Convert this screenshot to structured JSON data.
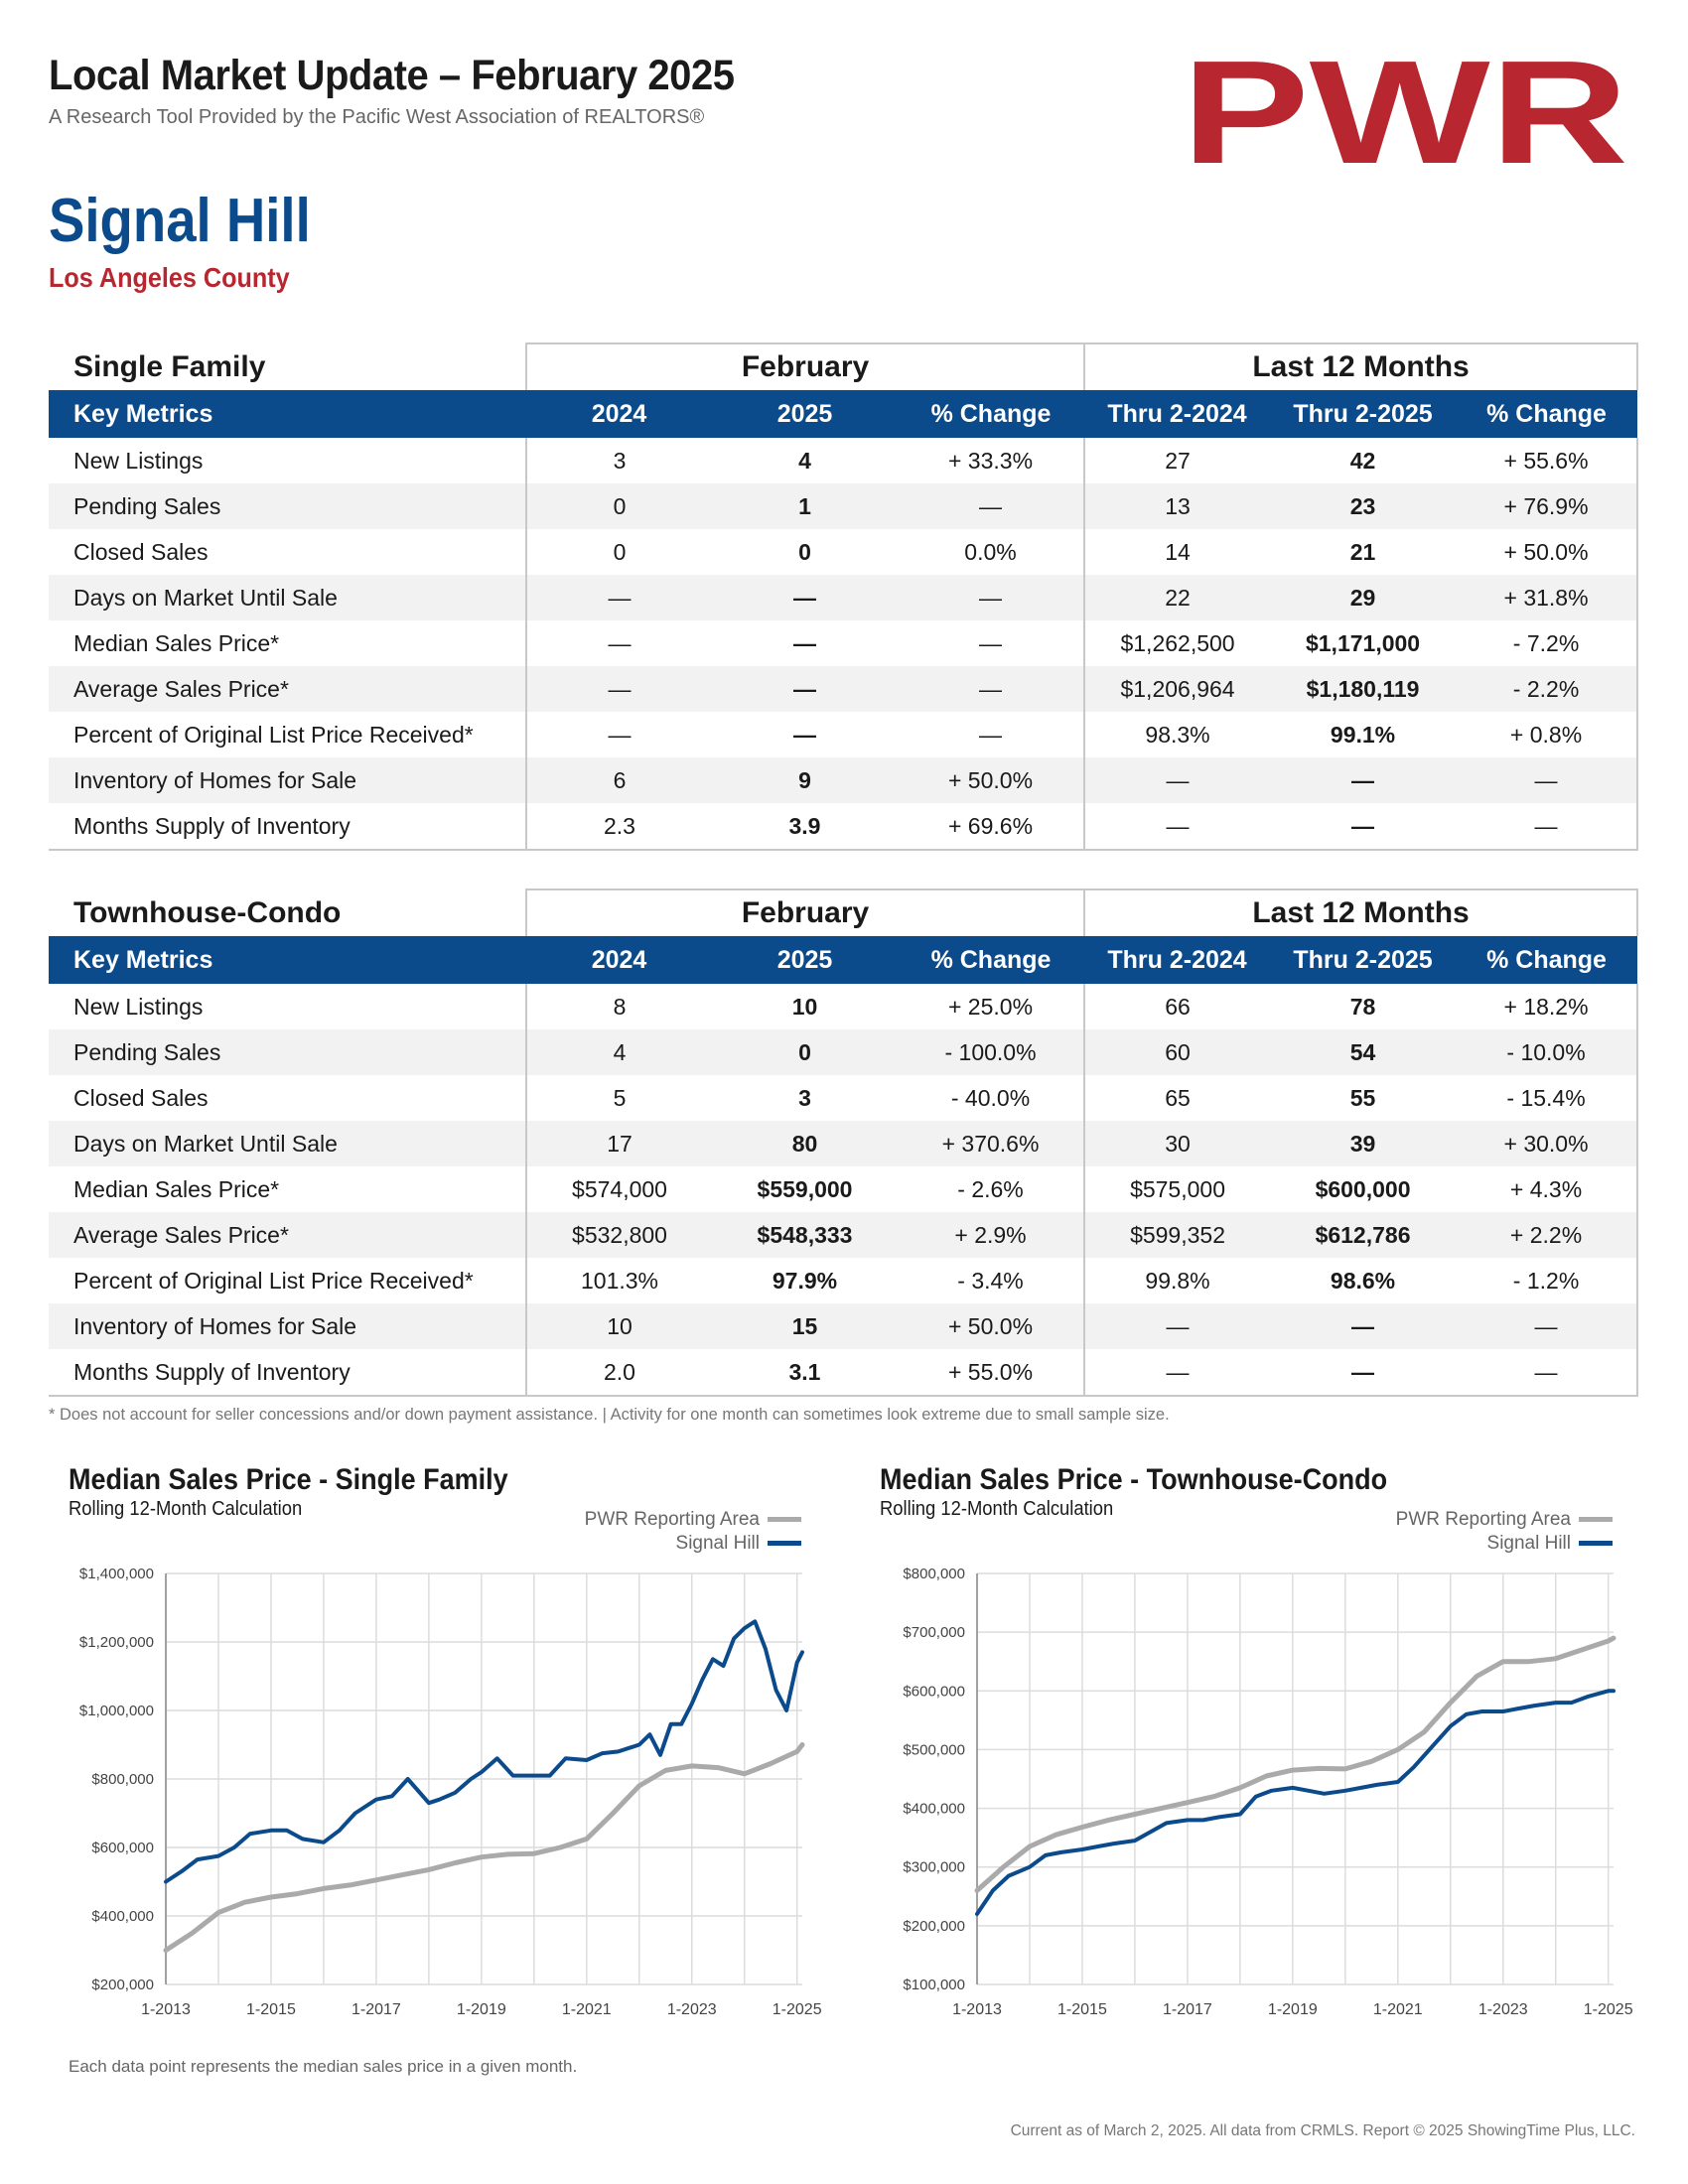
{
  "header": {
    "title": "Local Market Update – February 2025",
    "subtitle": "A Research Tool Provided by the Pacific West Association of REALTORS®",
    "logo_text": "PWR",
    "logo_color": "#b8272f"
  },
  "area": {
    "name": "Signal Hill",
    "county": "Los Angeles County"
  },
  "colors": {
    "brand_blue": "#0b4a8b",
    "brand_red": "#b8272f",
    "area_line": "#aaaaaa",
    "local_line": "#0b4a8b"
  },
  "tables": [
    {
      "title": "Single Family",
      "group_february": "February",
      "group_12m": "Last 12 Months",
      "headers": [
        "Key Metrics",
        "2024",
        "2025",
        "% Change",
        "Thru 2-2024",
        "Thru 2-2025",
        "% Change"
      ],
      "rows": [
        [
          "New Listings",
          "3",
          "4",
          "+ 33.3%",
          "27",
          "42",
          "+ 55.6%"
        ],
        [
          "Pending Sales",
          "0",
          "1",
          "—",
          "13",
          "23",
          "+ 76.9%"
        ],
        [
          "Closed Sales",
          "0",
          "0",
          "0.0%",
          "14",
          "21",
          "+ 50.0%"
        ],
        [
          "Days on Market Until Sale",
          "—",
          "—",
          "—",
          "22",
          "29",
          "+ 31.8%"
        ],
        [
          "Median Sales Price*",
          "—",
          "—",
          "—",
          "$1,262,500",
          "$1,171,000",
          "- 7.2%"
        ],
        [
          "Average Sales Price*",
          "—",
          "—",
          "—",
          "$1,206,964",
          "$1,180,119",
          "- 2.2%"
        ],
        [
          "Percent of Original List Price Received*",
          "—",
          "—",
          "—",
          "98.3%",
          "99.1%",
          "+ 0.8%"
        ],
        [
          "Inventory of Homes for Sale",
          "6",
          "9",
          "+ 50.0%",
          "—",
          "—",
          "—"
        ],
        [
          "Months Supply of Inventory",
          "2.3",
          "3.9",
          "+ 69.6%",
          "—",
          "—",
          "—"
        ]
      ]
    },
    {
      "title": "Townhouse-Condo",
      "group_february": "February",
      "group_12m": "Last 12 Months",
      "headers": [
        "Key Metrics",
        "2024",
        "2025",
        "% Change",
        "Thru 2-2024",
        "Thru 2-2025",
        "% Change"
      ],
      "rows": [
        [
          "New Listings",
          "8",
          "10",
          "+ 25.0%",
          "66",
          "78",
          "+ 18.2%"
        ],
        [
          "Pending Sales",
          "4",
          "0",
          "- 100.0%",
          "60",
          "54",
          "- 10.0%"
        ],
        [
          "Closed Sales",
          "5",
          "3",
          "- 40.0%",
          "65",
          "55",
          "- 15.4%"
        ],
        [
          "Days on Market Until Sale",
          "17",
          "80",
          "+ 370.6%",
          "30",
          "39",
          "+ 30.0%"
        ],
        [
          "Median Sales Price*",
          "$574,000",
          "$559,000",
          "- 2.6%",
          "$575,000",
          "$600,000",
          "+ 4.3%"
        ],
        [
          "Average Sales Price*",
          "$532,800",
          "$548,333",
          "+ 2.9%",
          "$599,352",
          "$612,786",
          "+ 2.2%"
        ],
        [
          "Percent of Original List Price Received*",
          "101.3%",
          "97.9%",
          "- 3.4%",
          "99.8%",
          "98.6%",
          "- 1.2%"
        ],
        [
          "Inventory of Homes for Sale",
          "10",
          "15",
          "+ 50.0%",
          "—",
          "—",
          "—"
        ],
        [
          "Months Supply of Inventory",
          "2.0",
          "3.1",
          "+ 55.0%",
          "—",
          "—",
          "—"
        ]
      ]
    }
  ],
  "footnote": "* Does not account for seller concessions and/or down payment assistance. | Activity for one month can sometimes look extreme due to small sample size.",
  "chart_note": "Each data point represents the median sales price in a given month.",
  "page_footer": "Current as of March 2, 2025. All data from CRMLS. Report © 2025 ShowingTime Plus, LLC.",
  "chart_data": [
    {
      "type": "line",
      "title": "Median Sales Price - Single Family",
      "subtitle": "Rolling 12-Month Calculation",
      "ylim": [
        200000,
        1400000
      ],
      "yticks": [
        200000,
        400000,
        600000,
        800000,
        1000000,
        1200000,
        1400000
      ],
      "ytick_labels": [
        "$200,000",
        "$400,000",
        "$600,000",
        "$800,000",
        "$1,000,000",
        "$1,200,000",
        "$1,400,000"
      ],
      "xlim": [
        2013,
        2025.1
      ],
      "xticks": [
        2013,
        2015,
        2017,
        2019,
        2021,
        2023,
        2025
      ],
      "xtick_labels": [
        "1-2013",
        "1-2015",
        "1-2017",
        "1-2019",
        "1-2021",
        "1-2023",
        "1-2025"
      ],
      "grid": true,
      "legend": "top-right",
      "series": [
        {
          "name": "PWR Reporting Area",
          "color": "#aaaaaa",
          "x": [
            2013,
            2013.5,
            2014,
            2014.5,
            2015,
            2015.5,
            2016,
            2016.5,
            2017,
            2017.5,
            2018,
            2018.5,
            2019,
            2019.5,
            2020,
            2020.5,
            2021,
            2021.5,
            2022,
            2022.5,
            2023,
            2023.5,
            2024,
            2024.5,
            2025,
            2025.1
          ],
          "values": [
            300000,
            350000,
            410000,
            440000,
            455000,
            465000,
            480000,
            490000,
            505000,
            520000,
            535000,
            555000,
            572000,
            580000,
            582000,
            600000,
            625000,
            700000,
            780000,
            825000,
            838000,
            833000,
            815000,
            845000,
            880000,
            900000
          ]
        },
        {
          "name": "Signal Hill",
          "color": "#0b4a8b",
          "x": [
            2013,
            2013.3,
            2013.6,
            2014,
            2014.3,
            2014.6,
            2015,
            2015.3,
            2015.6,
            2016,
            2016.3,
            2016.6,
            2017,
            2017.3,
            2017.6,
            2018,
            2018.2,
            2018.5,
            2018.8,
            2019,
            2019.3,
            2019.6,
            2020,
            2020.3,
            2020.6,
            2021,
            2021.3,
            2021.6,
            2022,
            2022.2,
            2022.4,
            2022.6,
            2022.8,
            2023,
            2023.2,
            2023.4,
            2023.6,
            2023.8,
            2024,
            2024.2,
            2024.4,
            2024.6,
            2024.8,
            2025,
            2025.1
          ],
          "values": [
            500000,
            530000,
            565000,
            575000,
            600000,
            640000,
            650000,
            650000,
            625000,
            615000,
            650000,
            700000,
            740000,
            750000,
            800000,
            730000,
            740000,
            760000,
            800000,
            820000,
            860000,
            810000,
            810000,
            810000,
            860000,
            855000,
            875000,
            880000,
            900000,
            930000,
            870000,
            960000,
            960000,
            1020000,
            1090000,
            1150000,
            1130000,
            1210000,
            1240000,
            1260000,
            1180000,
            1060000,
            1000000,
            1140000,
            1170000
          ]
        }
      ]
    },
    {
      "type": "line",
      "title": "Median Sales Price - Townhouse-Condo",
      "subtitle": "Rolling 12-Month Calculation",
      "ylim": [
        100000,
        800000
      ],
      "yticks": [
        100000,
        200000,
        300000,
        400000,
        500000,
        600000,
        700000,
        800000
      ],
      "ytick_labels": [
        "$100,000",
        "$200,000",
        "$300,000",
        "$400,000",
        "$500,000",
        "$600,000",
        "$700,000",
        "$800,000"
      ],
      "xlim": [
        2013,
        2025.1
      ],
      "xticks": [
        2013,
        2015,
        2017,
        2019,
        2021,
        2023,
        2025
      ],
      "xtick_labels": [
        "1-2013",
        "1-2015",
        "1-2017",
        "1-2019",
        "1-2021",
        "1-2023",
        "1-2025"
      ],
      "grid": true,
      "legend": "top-right",
      "series": [
        {
          "name": "PWR Reporting Area",
          "color": "#aaaaaa",
          "x": [
            2013,
            2013.5,
            2014,
            2014.5,
            2015,
            2015.5,
            2016,
            2016.5,
            2017,
            2017.5,
            2018,
            2018.5,
            2019,
            2019.5,
            2020,
            2020.5,
            2021,
            2021.5,
            2022,
            2022.5,
            2023,
            2023.5,
            2024,
            2024.5,
            2025,
            2025.1
          ],
          "values": [
            260000,
            300000,
            335000,
            355000,
            368000,
            380000,
            390000,
            400000,
            410000,
            420000,
            435000,
            455000,
            465000,
            468000,
            467000,
            480000,
            500000,
            530000,
            580000,
            625000,
            650000,
            650000,
            655000,
            670000,
            685000,
            690000
          ]
        },
        {
          "name": "Signal Hill",
          "color": "#0b4a8b",
          "x": [
            2013,
            2013.3,
            2013.6,
            2014,
            2014.3,
            2014.6,
            2015,
            2015.3,
            2015.6,
            2016,
            2016.3,
            2016.6,
            2017,
            2017.3,
            2017.6,
            2018,
            2018.3,
            2018.6,
            2019,
            2019.3,
            2019.6,
            2020,
            2020.3,
            2020.6,
            2021,
            2021.3,
            2021.6,
            2022,
            2022.3,
            2022.6,
            2023,
            2023.3,
            2023.6,
            2024,
            2024.3,
            2024.6,
            2025,
            2025.1
          ],
          "values": [
            220000,
            260000,
            285000,
            300000,
            320000,
            325000,
            330000,
            335000,
            340000,
            345000,
            360000,
            375000,
            380000,
            380000,
            385000,
            390000,
            420000,
            430000,
            435000,
            430000,
            425000,
            430000,
            435000,
            440000,
            445000,
            470000,
            500000,
            540000,
            560000,
            565000,
            565000,
            570000,
            575000,
            580000,
            580000,
            590000,
            600000,
            600000
          ]
        }
      ]
    }
  ]
}
